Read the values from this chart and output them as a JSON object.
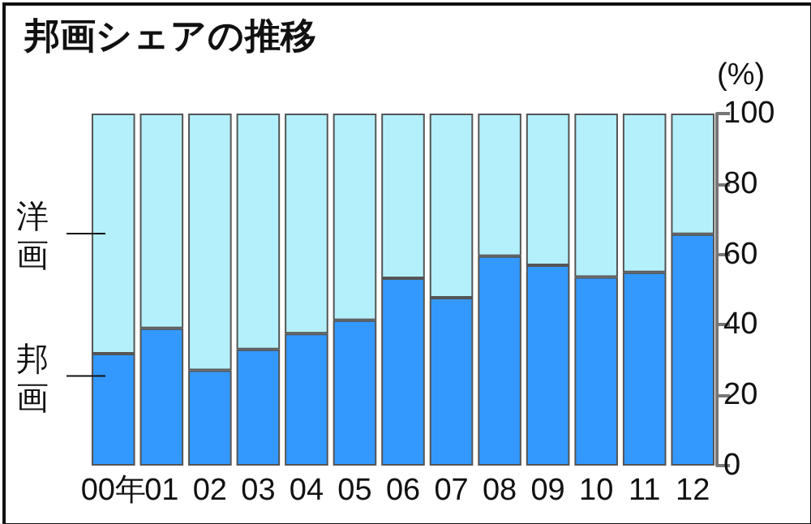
{
  "chart_data": {
    "type": "bar",
    "title": "邦画シェアの推移",
    "ylabel": "(%)",
    "stacked": true,
    "categories": [
      "00年",
      "01",
      "02",
      "03",
      "04",
      "05",
      "06",
      "07",
      "08",
      "09",
      "10",
      "11",
      "12"
    ],
    "series": [
      {
        "name": "邦画",
        "color": "#3399ff",
        "values": [
          31.8,
          39.0,
          27.1,
          33.0,
          37.5,
          41.3,
          53.2,
          47.7,
          59.5,
          56.9,
          53.6,
          54.9,
          65.7
        ]
      },
      {
        "name": "洋画",
        "color": "#b3f0fc",
        "values": [
          68.2,
          61.0,
          72.9,
          67.0,
          62.5,
          58.7,
          46.8,
          52.3,
          40.5,
          43.1,
          46.4,
          45.1,
          34.3
        ]
      }
    ],
    "ylim": [
      0,
      100
    ],
    "yticks": [
      0,
      20,
      40,
      60,
      80,
      100
    ],
    "grid": false,
    "legend": false
  }
}
